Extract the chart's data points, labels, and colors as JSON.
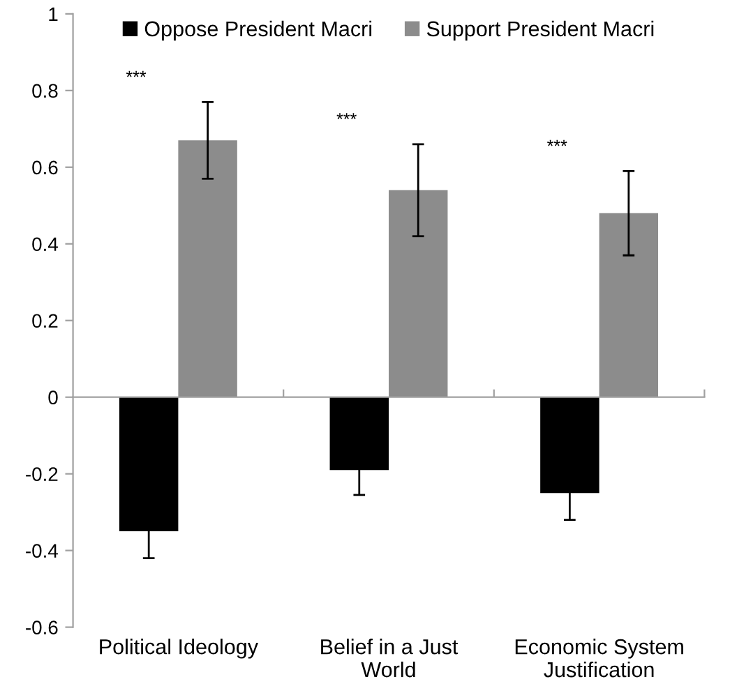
{
  "chart_data": {
    "type": "bar",
    "categories": [
      "Political Ideology",
      "Belief in a Just\nWorld",
      "Economic System\nJustification"
    ],
    "series": [
      {
        "name": "Oppose President Macri",
        "color": "#000000",
        "values": [
          -0.35,
          -0.19,
          -0.25
        ],
        "errors": [
          0.07,
          0.065,
          0.07
        ]
      },
      {
        "name": "Support President Macri",
        "color": "#8c8c8c",
        "values": [
          0.67,
          0.54,
          0.48
        ],
        "errors": [
          0.1,
          0.12,
          0.11
        ]
      }
    ],
    "ylim": [
      -0.6,
      1
    ],
    "yticks": [
      -0.6,
      -0.4,
      -0.2,
      0,
      0.2,
      0.4,
      0.6,
      0.8,
      1
    ],
    "annotations": [
      "***",
      "***",
      "***"
    ],
    "legend": "top"
  }
}
